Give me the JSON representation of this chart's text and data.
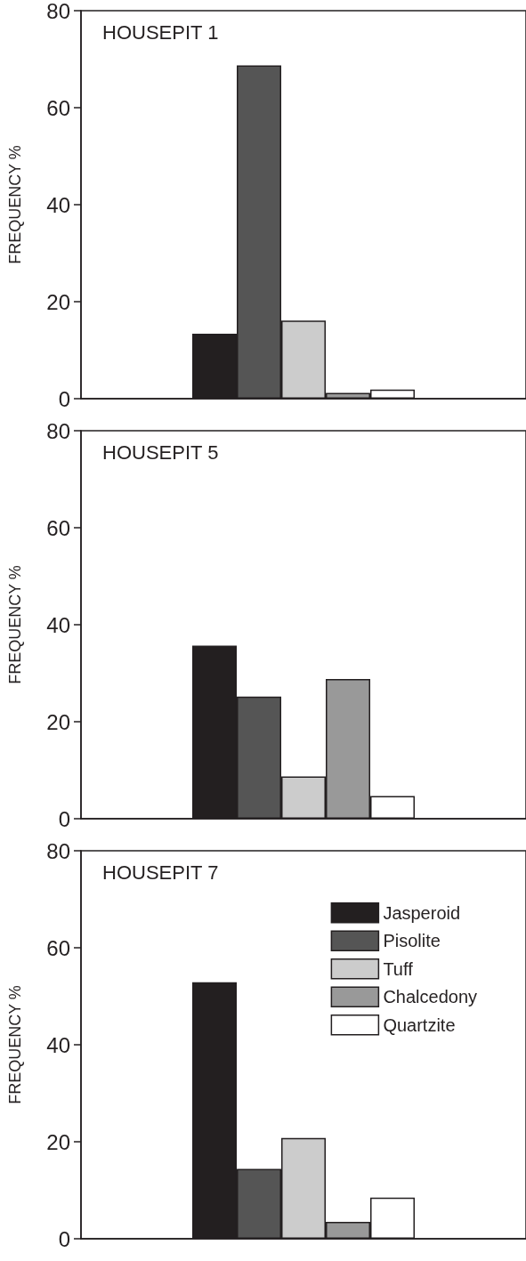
{
  "chart_data": [
    {
      "type": "bar",
      "title": "HOUSEPIT 1",
      "ylabel": "FREQUENCY %",
      "categories": [
        null
      ],
      "series": [
        {
          "color": "#231f20",
          "values": [
            13.4
          ]
        },
        {
          "color": "#555555",
          "values": [
            68.7
          ]
        },
        {
          "color": "#cccccc",
          "values": [
            16.1
          ]
        },
        {
          "color": "#999999",
          "values": [
            1.2
          ]
        },
        {
          "color": "#ffffff",
          "values": [
            1.9
          ]
        }
      ],
      "ylim": [
        0,
        80
      ],
      "yticks": [
        0,
        20,
        40,
        60,
        80
      ],
      "grid": false,
      "legend": false
    },
    {
      "type": "bar",
      "title": "HOUSEPIT 5",
      "ylabel": "FREQUENCY %",
      "categories": [
        null
      ],
      "series": [
        {
          "color": "#231f20",
          "values": [
            35.7
          ]
        },
        {
          "color": "#555555",
          "values": [
            25.2
          ]
        },
        {
          "color": "#cccccc",
          "values": [
            8.7
          ]
        },
        {
          "color": "#999999",
          "values": [
            28.8
          ]
        },
        {
          "color": "#ffffff",
          "values": [
            4.7
          ]
        }
      ],
      "ylim": [
        0,
        80
      ],
      "yticks": [
        0,
        20,
        40,
        60,
        80
      ],
      "grid": false,
      "legend": false
    },
    {
      "type": "bar",
      "title": "HOUSEPIT 7",
      "ylabel": "FREQUENCY %",
      "categories": [
        null
      ],
      "series": [
        {
          "name": "Jasperoid",
          "color": "#231f20",
          "values": [
            52.9
          ]
        },
        {
          "name": "Pisolite",
          "color": "#555555",
          "values": [
            14.4
          ]
        },
        {
          "name": "Tuff",
          "color": "#cccccc",
          "values": [
            20.8
          ]
        },
        {
          "name": "Chalcedony",
          "color": "#999999",
          "values": [
            3.5
          ]
        },
        {
          "name": "Quartzite",
          "color": "#ffffff",
          "values": [
            8.5
          ]
        }
      ],
      "ylim": [
        0,
        80
      ],
      "yticks": [
        0,
        20,
        40,
        60,
        80
      ],
      "grid": false,
      "legend": "top right"
    }
  ]
}
